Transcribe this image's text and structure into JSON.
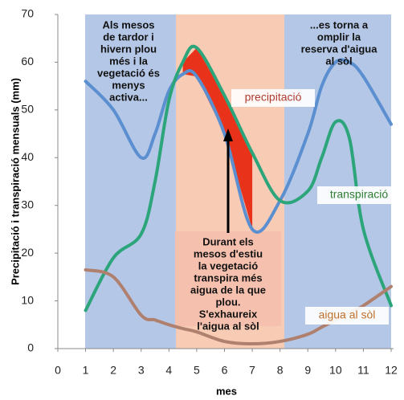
{
  "chart_data": {
    "type": "line",
    "y_label": "Precipitació i transpiració  mensuals (mm)",
    "x_label": "mes",
    "x": [
      1,
      2,
      3,
      3.5,
      4,
      4.5,
      5,
      6,
      7,
      8,
      9,
      9.5,
      10,
      10.5,
      11,
      12
    ],
    "series": [
      {
        "name": "precipitació",
        "color": "#5b8fd0",
        "label_color": "#b03a2e",
        "values": [
          56,
          50,
          40,
          45,
          54,
          57.5,
          57,
          45,
          25,
          31,
          45,
          55,
          60,
          60,
          57,
          47
        ]
      },
      {
        "name": "transpiració",
        "color": "#2ca57a",
        "label_color": "#2e7d32",
        "values": [
          8,
          19,
          24,
          35,
          52,
          60,
          63,
          53,
          41,
          31,
          33,
          40,
          47.5,
          44,
          25,
          9
        ]
      },
      {
        "name": "aigua al sòl",
        "color": "#b0806e",
        "label_color": "#c0702a",
        "values": [
          16.5,
          15,
          7,
          6,
          5,
          4.2,
          3.5,
          1.5,
          1,
          1.5,
          3,
          4.5,
          6,
          7.5,
          9,
          13
        ]
      }
    ],
    "xlim": [
      0,
      12
    ],
    "xticks": [
      0,
      1,
      2,
      3,
      4,
      5,
      6,
      7,
      8,
      9,
      10,
      11,
      12
    ],
    "ylim": [
      0,
      70
    ],
    "yticks": [
      0,
      10,
      20,
      30,
      40,
      50,
      60,
      70
    ],
    "grid": false,
    "annotations": [
      {
        "lines": [
          "Als mesos",
          "de tardor i",
          "hivern plou",
          "més i la",
          "vegetació és",
          "menys",
          "activa..."
        ]
      },
      {
        "lines": [
          "...es torna a",
          "omplir la",
          "reserva d'aigua",
          "al sòl"
        ]
      },
      {
        "lines": [
          "Durant els",
          "mesos d'estiu",
          "la vegetació",
          "transpira més",
          "aigua de la que",
          "plou.",
          "S'exhaureix",
          "l'aigua al sòl"
        ]
      }
    ]
  }
}
